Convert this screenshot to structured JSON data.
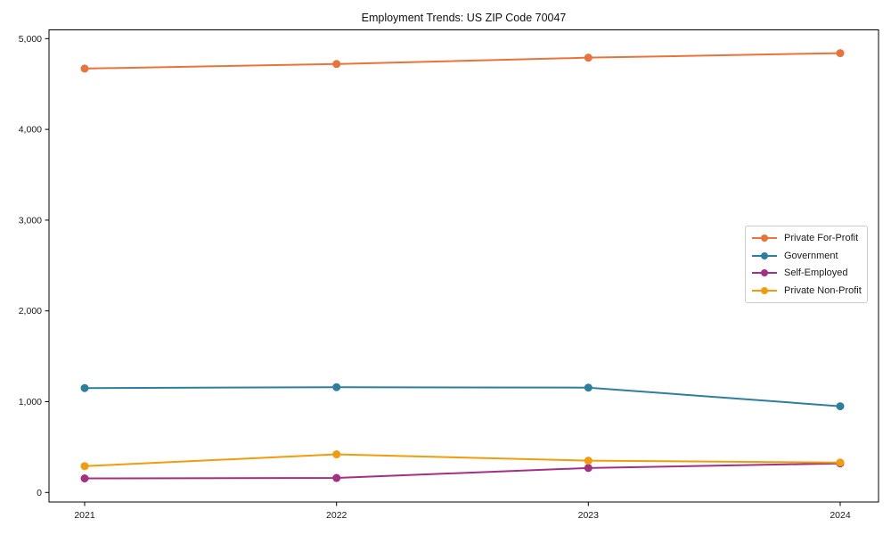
{
  "chart_data": {
    "type": "line",
    "title": "Employment Trends: US ZIP Code 70047",
    "xlabel": "",
    "ylabel": "",
    "categories": [
      "2021",
      "2022",
      "2023",
      "2024"
    ],
    "series": [
      {
        "name": "Private For-Profit",
        "color": "#e8743b",
        "values": [
          4670,
          4720,
          4790,
          4840
        ]
      },
      {
        "name": "Government",
        "color": "#2d7f9e",
        "values": [
          1150,
          1160,
          1155,
          950
        ]
      },
      {
        "name": "Self-Employed",
        "color": "#a23181",
        "values": [
          155,
          160,
          270,
          320
        ]
      },
      {
        "name": "Private Non-Profit",
        "color": "#f09c0d",
        "values": [
          290,
          420,
          350,
          330
        ]
      }
    ],
    "y_ticks": [
      0,
      1000,
      2000,
      3000,
      4000,
      5000
    ],
    "y_tick_labels": [
      "0",
      "1,000",
      "2,000",
      "3,000",
      "4,000",
      "5,000"
    ],
    "ylim": [
      -110,
      5100
    ],
    "grid": false,
    "legend_position": "center-right",
    "marker": "circle",
    "line_width": 2,
    "marker_radius": 4.5,
    "axis_color": "#000000",
    "text_color": "#1a1a1a"
  }
}
